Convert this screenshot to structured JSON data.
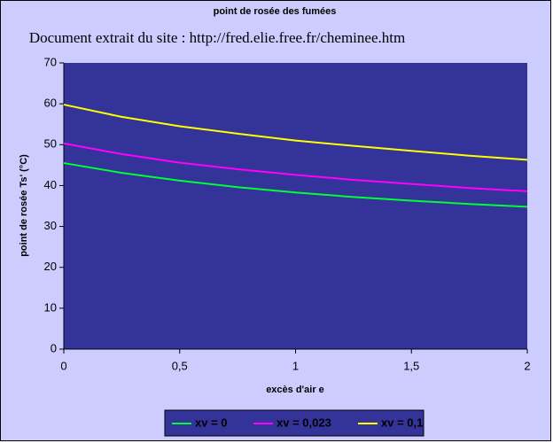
{
  "chart_data": {
    "type": "line",
    "title": "point de rosée des fumées",
    "subtitle": "Document extrait du site : http://fred.elie.free.fr/cheminee.htm",
    "x_label": "excès d'air e",
    "y_label": "point de rosée Ts' (°C)",
    "x": [
      0,
      0.25,
      0.5,
      0.75,
      1,
      1.25,
      1.5,
      1.75,
      2
    ],
    "series": [
      {
        "name": "xv = 0",
        "color": "#00ff33",
        "values": [
          45.5,
          43.1,
          41.2,
          39.6,
          38.3,
          37.2,
          36.3,
          35.5,
          34.8
        ]
      },
      {
        "name": "xv = 0,023",
        "color": "#ff00ff",
        "values": [
          50.3,
          47.7,
          45.6,
          44.0,
          42.6,
          41.4,
          40.4,
          39.4,
          38.6
        ]
      },
      {
        "name": "xv = 0,1",
        "color": "#ffff00",
        "values": [
          59.8,
          56.8,
          54.5,
          52.7,
          51.0,
          49.7,
          48.5,
          47.3,
          46.3
        ]
      }
    ],
    "xlim": [
      0,
      2
    ],
    "xticks": [
      0,
      {
        "value": 0.5,
        "label": "0,5"
      },
      1,
      {
        "value": 1.5,
        "label": "1,5"
      },
      2
    ],
    "ylim": [
      0,
      70
    ],
    "yticks": [
      0,
      10,
      20,
      30,
      40,
      50,
      60,
      70
    ],
    "grid": false,
    "legend": "bottom"
  }
}
